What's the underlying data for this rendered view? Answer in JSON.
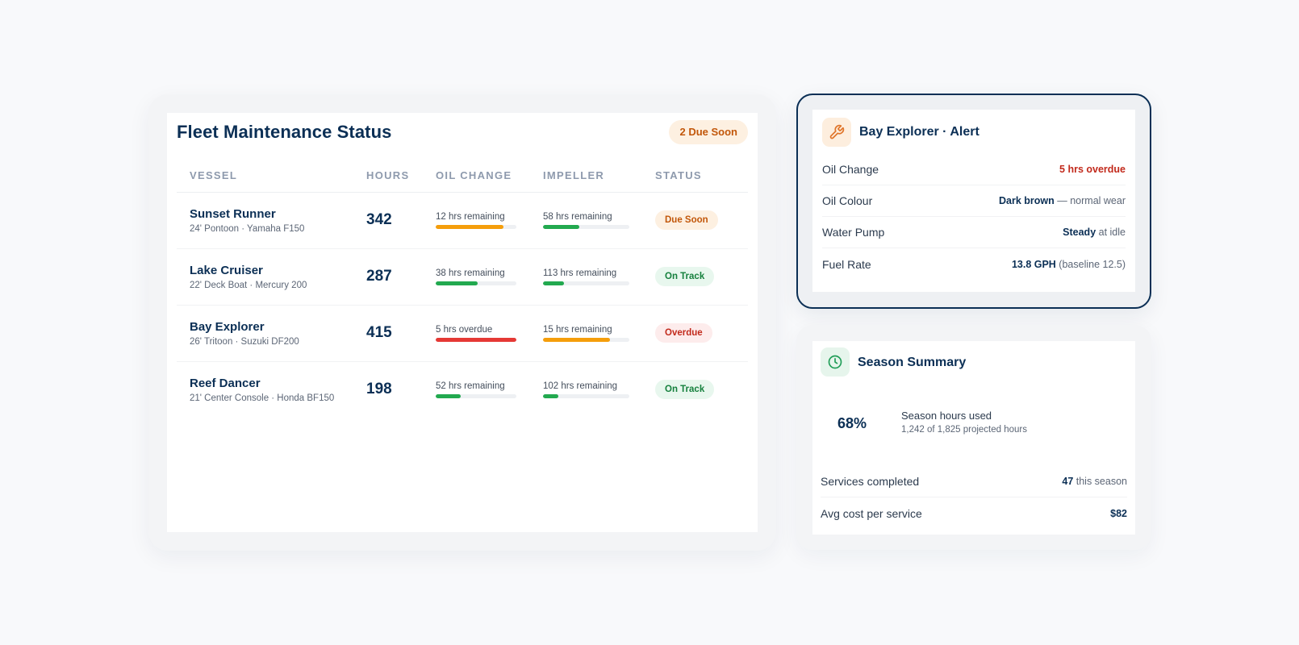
{
  "fleet": {
    "title": "Fleet Maintenance Status",
    "due_badge": "2 Due Soon",
    "columns": [
      "VESSEL",
      "HOURS",
      "OIL CHANGE",
      "IMPELLER",
      "STATUS"
    ],
    "rows": [
      {
        "name": "Sunset Runner",
        "spec": "24' Pontoon · Yamaha F150",
        "hours": "342",
        "oil": {
          "label": "12 hrs remaining",
          "progress": 0.84,
          "color": "#f59e0b"
        },
        "impeller": {
          "label": "58 hrs remaining",
          "progress": 0.42,
          "color": "#22a94f"
        },
        "status": {
          "label": "Due Soon",
          "bg": "#fdf0e1",
          "fg": "#c2570a"
        }
      },
      {
        "name": "Lake Cruiser",
        "spec": "22' Deck Boat · Mercury 200",
        "hours": "287",
        "oil": {
          "label": "38 hrs remaining",
          "progress": 0.52,
          "color": "#22a94f"
        },
        "impeller": {
          "label": "113 hrs remaining",
          "progress": 0.24,
          "color": "#22a94f"
        },
        "status": {
          "label": "On Track",
          "bg": "#e8f7ee",
          "fg": "#15803d"
        }
      },
      {
        "name": "Bay Explorer",
        "spec": "26' Tritoon · Suzuki DF200",
        "hours": "415",
        "oil": {
          "label": "5 hrs overdue",
          "progress": 1.0,
          "color": "#e53935"
        },
        "impeller": {
          "label": "15 hrs remaining",
          "progress": 0.78,
          "color": "#f59e0b"
        },
        "status": {
          "label": "Overdue",
          "bg": "#fdecec",
          "fg": "#c22a1c"
        }
      },
      {
        "name": "Reef Dancer",
        "spec": "21' Center Console · Honda BF150",
        "hours": "198",
        "oil": {
          "label": "52 hrs remaining",
          "progress": 0.31,
          "color": "#22a94f"
        },
        "impeller": {
          "label": "102 hrs remaining",
          "progress": 0.18,
          "color": "#22a94f"
        },
        "status": {
          "label": "On Track",
          "bg": "#e8f7ee",
          "fg": "#15803d"
        }
      }
    ]
  },
  "alert": {
    "icon": "wrench-icon",
    "title": "Bay Explorer · Alert",
    "rows": [
      {
        "label": "Oil Change",
        "strong": "5 hrs overdue",
        "rest": "",
        "danger": true
      },
      {
        "label": "Oil Colour",
        "strong": "Dark brown",
        "rest": " — normal wear",
        "danger": false
      },
      {
        "label": "Water Pump",
        "strong": "Steady",
        "rest": " at idle",
        "danger": false
      },
      {
        "label": "Fuel Rate",
        "strong": "13.8 GPH",
        "rest": " (baseline 12.5)",
        "danger": false
      }
    ]
  },
  "season": {
    "icon": "clock-icon",
    "title": "Season Summary",
    "percent": "68%",
    "used_label": "Season hours used",
    "used_sub": "1,242 of 1,825 projected hours",
    "rows": [
      {
        "label": "Services completed",
        "strong": "47",
        "rest": " this season"
      },
      {
        "label": "Avg cost per service",
        "strong": "$82",
        "rest": ""
      }
    ]
  },
  "colors": {
    "navy": "#0b2f55",
    "orange": "#f59e0b",
    "green": "#22a94f",
    "red": "#e53935",
    "alert_icon": "#e0752a",
    "season_icon": "#1f9d57"
  }
}
